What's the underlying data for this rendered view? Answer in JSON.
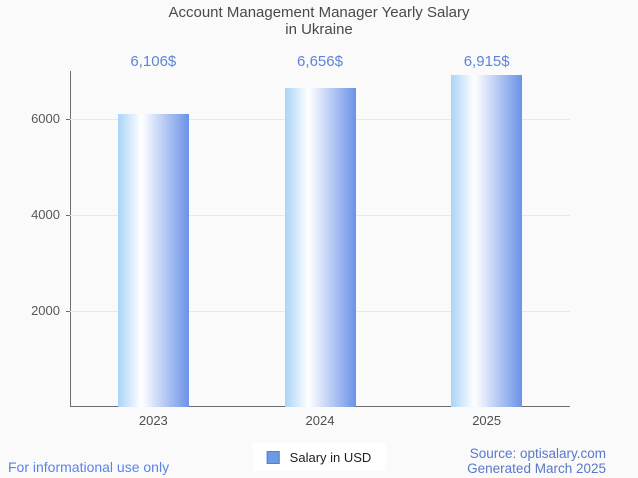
{
  "page": {
    "background": "#fafafa"
  },
  "chart_data": {
    "type": "bar",
    "title": "Account Management Manager Yearly Salary in Ukraine",
    "title_lines": [
      "Account Management Manager Yearly Salary",
      "in Ukraine"
    ],
    "categories": [
      "2023",
      "2024",
      "2025"
    ],
    "series": [
      {
        "name": "Salary in USD",
        "values": [
          6106,
          6656,
          6915
        ]
      }
    ],
    "value_labels": [
      "6,106$",
      "6,656$",
      "6,915$"
    ],
    "xlabel": "",
    "ylabel": "",
    "ylim": [
      0,
      7000
    ],
    "yticks": [
      2000,
      4000,
      6000
    ],
    "grid": true,
    "legend_position": "bottom"
  },
  "colors": {
    "background": "#fafafa",
    "title_text": "#4a4a4a",
    "axis_line": "#6e6e6e",
    "gridline": "#e8e8e8",
    "tick_text": "#585858",
    "value_label_text": "#5e84d8",
    "bar_gradient_left": "#aad3f8",
    "bar_gradient_mid": "#ffffff",
    "bar_gradient_right": "#6b92e8",
    "legend_marker": "#6d9ae4",
    "legend_marker_border": "#5580ce",
    "footer_left_text": "#5b83e8",
    "footer_right_text": "#5a78c9"
  },
  "legend": {
    "label": "Salary in USD"
  },
  "footer": {
    "left": "For informational use only",
    "source": "Source: optisalary.com",
    "generated": "Generated March 2025"
  }
}
